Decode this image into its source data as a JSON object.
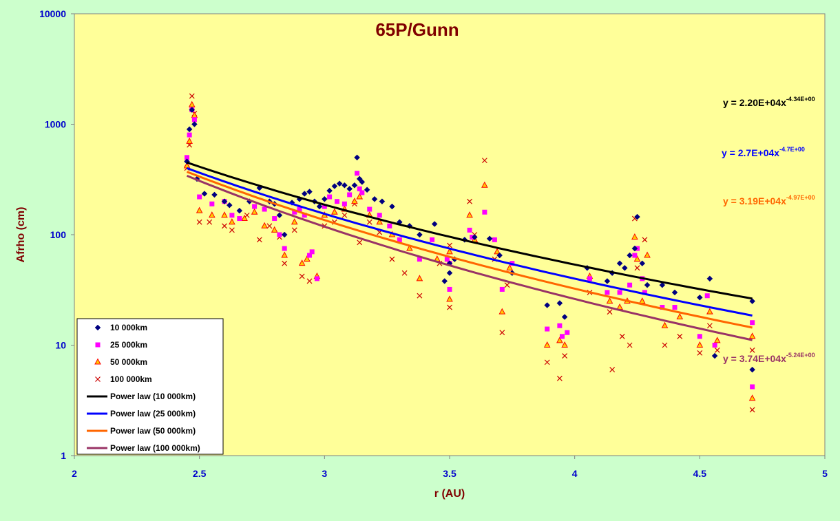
{
  "chart_data": {
    "type": "scatter",
    "title": "65P/Gunn",
    "xlabel": "r (AU)",
    "ylabel": "Afrho (cm)",
    "xlim": [
      2,
      5
    ],
    "ylim": [
      1,
      10000
    ],
    "y_scale": "log",
    "grid": false,
    "legend_position": "bottom-left",
    "x_tick_labels": [
      "2",
      "2.5",
      "3",
      "3.5",
      "4",
      "4.5",
      "5"
    ],
    "y_tick_labels": [
      "1",
      "10",
      "100",
      "1000",
      "10000"
    ],
    "colors": {
      "background": "#ccffcc",
      "plot_area": "#ffff99",
      "s10000": "#000080",
      "s25000": "#ff00ff",
      "s50000_fill": "#ffcc00",
      "s50000_edge": "#ff0000",
      "s100000": "#cc0000",
      "fit10000": "#000000",
      "fit25000": "#0000ff",
      "fit50000": "#ff6600",
      "fit100000": "#993366"
    },
    "series": [
      {
        "name": "10 000km",
        "marker": "diamond",
        "points": [
          [
            2.45,
            460
          ],
          [
            2.46,
            900
          ],
          [
            2.47,
            1350
          ],
          [
            2.48,
            1000
          ],
          [
            2.49,
            320
          ],
          [
            2.52,
            235
          ],
          [
            2.56,
            230
          ],
          [
            2.6,
            200
          ],
          [
            2.62,
            185
          ],
          [
            2.66,
            165
          ],
          [
            2.7,
            200
          ],
          [
            2.74,
            265
          ],
          [
            2.78,
            200
          ],
          [
            2.8,
            190
          ],
          [
            2.82,
            150
          ],
          [
            2.84,
            100
          ],
          [
            2.87,
            195
          ],
          [
            2.9,
            210
          ],
          [
            2.92,
            235
          ],
          [
            2.94,
            245
          ],
          [
            2.96,
            200
          ],
          [
            2.98,
            180
          ],
          [
            3.0,
            210
          ],
          [
            3.02,
            250
          ],
          [
            3.04,
            275
          ],
          [
            3.06,
            290
          ],
          [
            3.08,
            280
          ],
          [
            3.1,
            260
          ],
          [
            3.12,
            280
          ],
          [
            3.13,
            500
          ],
          [
            3.14,
            320
          ],
          [
            3.15,
            300
          ],
          [
            3.17,
            255
          ],
          [
            3.2,
            210
          ],
          [
            3.23,
            200
          ],
          [
            3.27,
            180
          ],
          [
            3.3,
            130
          ],
          [
            3.34,
            120
          ],
          [
            3.38,
            100
          ],
          [
            3.44,
            125
          ],
          [
            3.48,
            38
          ],
          [
            3.5,
            45
          ],
          [
            3.5,
            55
          ],
          [
            3.52,
            60
          ],
          [
            3.56,
            90
          ],
          [
            3.6,
            95
          ],
          [
            3.66,
            92
          ],
          [
            3.7,
            65
          ],
          [
            3.75,
            45
          ],
          [
            3.89,
            23
          ],
          [
            3.94,
            24
          ],
          [
            3.96,
            18
          ],
          [
            4.05,
            50
          ],
          [
            4.13,
            38
          ],
          [
            4.15,
            45
          ],
          [
            4.18,
            55
          ],
          [
            4.2,
            50
          ],
          [
            4.22,
            65
          ],
          [
            4.24,
            75
          ],
          [
            4.25,
            145
          ],
          [
            4.27,
            55
          ],
          [
            4.29,
            35
          ],
          [
            4.35,
            35
          ],
          [
            4.4,
            30
          ],
          [
            4.5,
            27
          ],
          [
            4.54,
            40
          ],
          [
            4.56,
            8
          ],
          [
            4.71,
            25
          ],
          [
            4.71,
            6
          ]
        ]
      },
      {
        "name": "25 000km",
        "marker": "square",
        "points": [
          [
            2.45,
            500
          ],
          [
            2.46,
            800
          ],
          [
            2.47,
            1350
          ],
          [
            2.48,
            1100
          ],
          [
            2.5,
            220
          ],
          [
            2.55,
            190
          ],
          [
            2.6,
            200
          ],
          [
            2.63,
            150
          ],
          [
            2.66,
            140
          ],
          [
            2.72,
            180
          ],
          [
            2.76,
            170
          ],
          [
            2.8,
            140
          ],
          [
            2.82,
            100
          ],
          [
            2.84,
            75
          ],
          [
            2.88,
            160
          ],
          [
            2.9,
            170
          ],
          [
            2.92,
            150
          ],
          [
            2.94,
            65
          ],
          [
            2.95,
            70
          ],
          [
            2.97,
            40
          ],
          [
            3.0,
            180
          ],
          [
            3.02,
            220
          ],
          [
            3.05,
            200
          ],
          [
            3.08,
            190
          ],
          [
            3.1,
            230
          ],
          [
            3.13,
            360
          ],
          [
            3.14,
            260
          ],
          [
            3.15,
            240
          ],
          [
            3.18,
            170
          ],
          [
            3.22,
            150
          ],
          [
            3.26,
            120
          ],
          [
            3.3,
            90
          ],
          [
            3.38,
            60
          ],
          [
            3.43,
            90
          ],
          [
            3.49,
            60
          ],
          [
            3.5,
            55
          ],
          [
            3.5,
            32
          ],
          [
            3.58,
            110
          ],
          [
            3.59,
            95
          ],
          [
            3.64,
            160
          ],
          [
            3.68,
            90
          ],
          [
            3.71,
            32
          ],
          [
            3.75,
            55
          ],
          [
            3.89,
            14
          ],
          [
            3.94,
            15
          ],
          [
            3.95,
            12
          ],
          [
            3.97,
            13
          ],
          [
            4.06,
            40
          ],
          [
            4.13,
            30
          ],
          [
            4.18,
            30
          ],
          [
            4.22,
            35
          ],
          [
            4.24,
            65
          ],
          [
            4.25,
            75
          ],
          [
            4.27,
            40
          ],
          [
            4.28,
            30
          ],
          [
            4.35,
            22
          ],
          [
            4.4,
            22
          ],
          [
            4.5,
            12
          ],
          [
            4.53,
            28
          ],
          [
            4.56,
            10
          ],
          [
            4.71,
            16
          ],
          [
            4.71,
            4.2
          ]
        ]
      },
      {
        "name": "50 000km",
        "marker": "triangle",
        "points": [
          [
            2.45,
            420
          ],
          [
            2.46,
            700
          ],
          [
            2.47,
            1500
          ],
          [
            2.48,
            1200
          ],
          [
            2.5,
            165
          ],
          [
            2.55,
            150
          ],
          [
            2.6,
            150
          ],
          [
            2.63,
            130
          ],
          [
            2.68,
            140
          ],
          [
            2.72,
            160
          ],
          [
            2.76,
            120
          ],
          [
            2.8,
            110
          ],
          [
            2.84,
            65
          ],
          [
            2.88,
            130
          ],
          [
            2.91,
            55
          ],
          [
            2.93,
            60
          ],
          [
            2.97,
            42
          ],
          [
            3.0,
            150
          ],
          [
            3.04,
            160
          ],
          [
            3.08,
            170
          ],
          [
            3.12,
            200
          ],
          [
            3.14,
            220
          ],
          [
            3.18,
            150
          ],
          [
            3.22,
            130
          ],
          [
            3.27,
            100
          ],
          [
            3.34,
            75
          ],
          [
            3.38,
            40
          ],
          [
            3.45,
            60
          ],
          [
            3.5,
            70
          ],
          [
            3.5,
            26
          ],
          [
            3.58,
            150
          ],
          [
            3.6,
            90
          ],
          [
            3.64,
            280
          ],
          [
            3.69,
            70
          ],
          [
            3.71,
            20
          ],
          [
            3.74,
            50
          ],
          [
            3.89,
            10
          ],
          [
            3.94,
            11
          ],
          [
            3.96,
            10
          ],
          [
            4.06,
            42
          ],
          [
            4.14,
            25
          ],
          [
            4.18,
            22
          ],
          [
            4.21,
            25
          ],
          [
            4.24,
            95
          ],
          [
            4.25,
            60
          ],
          [
            4.27,
            25
          ],
          [
            4.29,
            65
          ],
          [
            4.36,
            15
          ],
          [
            4.42,
            18
          ],
          [
            4.5,
            10
          ],
          [
            4.54,
            20
          ],
          [
            4.57,
            11
          ],
          [
            4.71,
            12
          ],
          [
            4.71,
            3.3
          ]
        ]
      },
      {
        "name": "100 000km",
        "marker": "x",
        "points": [
          [
            2.45,
            400
          ],
          [
            2.46,
            650
          ],
          [
            2.47,
            1800
          ],
          [
            2.48,
            1250
          ],
          [
            2.5,
            130
          ],
          [
            2.54,
            130
          ],
          [
            2.6,
            120
          ],
          [
            2.63,
            110
          ],
          [
            2.69,
            150
          ],
          [
            2.74,
            90
          ],
          [
            2.78,
            120
          ],
          [
            2.82,
            95
          ],
          [
            2.84,
            55
          ],
          [
            2.88,
            110
          ],
          [
            2.91,
            42
          ],
          [
            2.94,
            38
          ],
          [
            3.0,
            120
          ],
          [
            3.04,
            130
          ],
          [
            3.08,
            150
          ],
          [
            3.12,
            190
          ],
          [
            3.14,
            85
          ],
          [
            3.18,
            130
          ],
          [
            3.22,
            105
          ],
          [
            3.27,
            60
          ],
          [
            3.32,
            45
          ],
          [
            3.38,
            28
          ],
          [
            3.46,
            55
          ],
          [
            3.5,
            80
          ],
          [
            3.5,
            22
          ],
          [
            3.58,
            200
          ],
          [
            3.6,
            100
          ],
          [
            3.64,
            470
          ],
          [
            3.68,
            60
          ],
          [
            3.71,
            13
          ],
          [
            3.73,
            35
          ],
          [
            3.89,
            7
          ],
          [
            3.94,
            5
          ],
          [
            3.96,
            8
          ],
          [
            4.06,
            30
          ],
          [
            4.14,
            20
          ],
          [
            4.15,
            6
          ],
          [
            4.19,
            12
          ],
          [
            4.22,
            10
          ],
          [
            4.24,
            140
          ],
          [
            4.25,
            50
          ],
          [
            4.28,
            90
          ],
          [
            4.36,
            10
          ],
          [
            4.42,
            12
          ],
          [
            4.5,
            8.5
          ],
          [
            4.54,
            15
          ],
          [
            4.57,
            9
          ],
          [
            4.71,
            9
          ],
          [
            4.71,
            2.6
          ]
        ]
      }
    ],
    "fits": [
      {
        "name": "Power law (10 000km)",
        "a": 22000,
        "b": -4.34,
        "x_range": [
          2.45,
          4.71
        ],
        "equation_main": "y = 2.20E+04x",
        "equation_exp": "-4.34E+00"
      },
      {
        "name": "Power law (25 000km)",
        "a": 27000,
        "b": -4.7,
        "x_range": [
          2.45,
          4.71
        ],
        "equation_main": "y = 2.7E+04x",
        "equation_exp": "-4.7E+00"
      },
      {
        "name": "Power law (50 000km)",
        "a": 31900,
        "b": -4.97,
        "x_range": [
          2.45,
          4.71
        ],
        "equation_main": "y = 3.19E+04x",
        "equation_exp": "-4.97E+00"
      },
      {
        "name": "Power law (100 000km)",
        "a": 37400,
        "b": -5.24,
        "x_range": [
          2.45,
          4.71
        ],
        "equation_main": "y = 3.74E+04x",
        "equation_exp": "-5.24E+00"
      }
    ]
  }
}
